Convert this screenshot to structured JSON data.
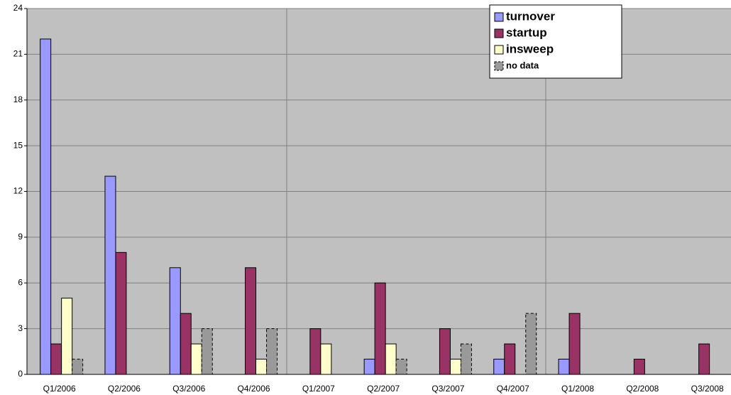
{
  "chart_data": {
    "type": "bar",
    "categories": [
      "Q1/2006",
      "Q2/2006",
      "Q3/2006",
      "Q4/2006",
      "Q1/2007",
      "Q2/2007",
      "Q3/2007",
      "Q4/2007",
      "Q1/2008",
      "Q2/2008",
      "Q3/2008"
    ],
    "series": [
      {
        "name": "turnover",
        "color": "#9999ff",
        "values": [
          22,
          13,
          7,
          0,
          0,
          1,
          0,
          1,
          1,
          0,
          0
        ]
      },
      {
        "name": "startup",
        "color": "#993366",
        "values": [
          2,
          8,
          4,
          7,
          3,
          6,
          3,
          2,
          4,
          1,
          2
        ]
      },
      {
        "name": "insweep",
        "color": "#ffffcc",
        "values": [
          5,
          0,
          2,
          1,
          2,
          2,
          1,
          0,
          0,
          0,
          0
        ]
      },
      {
        "name": "no data",
        "color": "#999999",
        "dashed": true,
        "values": [
          1,
          0,
          3,
          3,
          0,
          1,
          2,
          4,
          0,
          0,
          0
        ]
      }
    ],
    "ylim": [
      0,
      24
    ],
    "yticks": [
      0,
      3,
      6,
      9,
      12,
      15,
      18,
      21,
      24
    ],
    "grid": true
  }
}
